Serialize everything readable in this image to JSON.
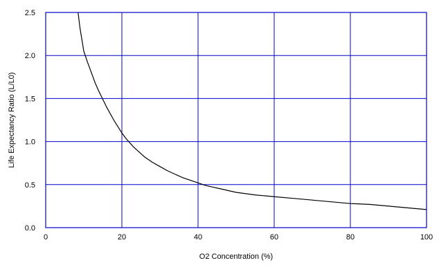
{
  "chart_data": {
    "type": "line",
    "xlabel": "O2 Concentration (%)",
    "ylabel": "Life Expectancy Ratio (L/L0)",
    "xlim": [
      0,
      100
    ],
    "ylim": [
      0,
      2.5
    ],
    "x_ticks": [
      0,
      20,
      40,
      60,
      80,
      100
    ],
    "y_ticks": [
      0.0,
      0.5,
      1.0,
      1.5,
      2.0,
      2.5
    ],
    "x_tick_labels": [
      "0",
      "20",
      "40",
      "60",
      "80",
      "100"
    ],
    "y_tick_labels": [
      "0.0",
      "0.5",
      "1.0",
      "1.5",
      "2.0",
      "2.5"
    ],
    "grid": true,
    "legend": "none",
    "colors": {
      "grid": "#0000cc",
      "frame": "#0000cc",
      "curve": "#000000"
    },
    "series": [
      {
        "x": [
          8.5,
          9,
          10,
          11,
          12,
          13,
          14,
          15,
          16,
          17,
          18,
          19,
          20,
          21,
          22,
          23,
          24,
          25,
          26,
          28,
          30,
          32,
          34,
          36,
          38,
          40,
          42,
          44,
          46,
          48,
          50,
          55,
          60,
          65,
          70,
          75,
          80,
          85,
          90,
          95,
          100
        ],
        "y": [
          2.5,
          2.32,
          2.05,
          1.92,
          1.8,
          1.68,
          1.58,
          1.49,
          1.4,
          1.32,
          1.24,
          1.17,
          1.1,
          1.04,
          0.99,
          0.94,
          0.9,
          0.86,
          0.82,
          0.76,
          0.71,
          0.66,
          0.62,
          0.58,
          0.55,
          0.52,
          0.49,
          0.47,
          0.45,
          0.43,
          0.41,
          0.38,
          0.36,
          0.34,
          0.32,
          0.3,
          0.28,
          0.27,
          0.25,
          0.23,
          0.21
        ]
      }
    ]
  }
}
